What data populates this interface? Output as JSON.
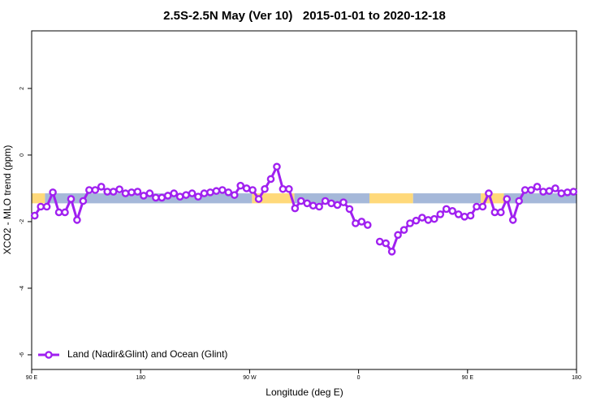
{
  "chart_data": {
    "type": "line",
    "title": "2.5S-2.5N May (Ver 10)   2015-01-01 to 2020-12-18",
    "x_label": "Longitude (deg E)",
    "y_label": "XCO2 - MLO trend (ppm)",
    "xlim": [
      90,
      540
    ],
    "ylim": [
      -6.44,
      3.73
    ],
    "xticks": [
      {
        "value": 90,
        "label": "90 E"
      },
      180,
      {
        "value": 270,
        "label": "90 W"
      },
      {
        "value": 360,
        "label": "0"
      },
      {
        "value": 450,
        "label": "90 E"
      },
      {
        "value": 540,
        "label": "180"
      }
    ],
    "yticks": [
      2,
      0,
      -2,
      -4,
      -6
    ],
    "legend_position": "lower left",
    "band": {
      "ylim": [
        -1.45,
        -1.15
      ],
      "segments": [
        {
          "x": [
            90,
            101
          ],
          "color": "#ffd97a"
        },
        {
          "x": [
            101,
            272
          ],
          "color": "#a5b8d9"
        },
        {
          "x": [
            272,
            307
          ],
          "color": "#ffd97a"
        },
        {
          "x": [
            307,
            369
          ],
          "color": "#a5b8d9"
        },
        {
          "x": [
            369,
            405
          ],
          "color": "#ffd97a"
        },
        {
          "x": [
            405,
            461
          ],
          "color": "#a5b8d9"
        },
        {
          "x": [
            461,
            480
          ],
          "color": "#ffd97a"
        },
        {
          "x": [
            480,
            540
          ],
          "color": "#a5b8d9"
        }
      ]
    },
    "x": [
      92.5,
      97.5,
      102.5,
      107.5,
      112.5,
      117.5,
      122.5,
      127.5,
      132.5,
      137.5,
      142.5,
      147.5,
      152.5,
      157.5,
      162.5,
      167.5,
      172.5,
      177.5,
      182.5,
      187.5,
      192.5,
      197.5,
      202.5,
      207.5,
      212.5,
      217.5,
      222.5,
      227.5,
      232.5,
      237.5,
      242.5,
      247.5,
      252.5,
      257.5,
      262.5,
      267.5,
      272.5,
      277.5,
      282.5,
      287.5,
      292.5,
      297.5,
      302.5,
      307.5,
      312.5,
      317.5,
      322.5,
      327.5,
      332.5,
      337.5,
      342.5,
      347.5,
      352.5,
      357.5,
      362.5,
      367.5,
      372.5,
      377.5,
      382.5,
      387.5,
      392.5,
      397.5,
      402.5,
      407.5,
      412.5,
      417.5,
      422.5,
      427.5,
      432.5,
      437.5,
      442.5,
      447.5,
      452.5,
      457.5,
      462.5,
      467.5,
      472.5,
      477.5,
      482.5,
      487.5,
      492.5,
      497.5,
      502.5,
      507.5,
      512.5,
      517.5,
      522.5,
      527.5,
      532.5,
      537.5
    ],
    "series": [
      {
        "name": "Land (Nadir&Glint) and Ocean (Glint)",
        "color": "#a020f0",
        "values": [
          -1.82,
          -1.55,
          -1.55,
          -1.12,
          -1.72,
          -1.72,
          -1.32,
          -1.95,
          -1.38,
          -1.05,
          -1.05,
          -0.95,
          -1.1,
          -1.1,
          -1.03,
          -1.15,
          -1.12,
          -1.1,
          -1.22,
          -1.15,
          -1.28,
          -1.28,
          -1.22,
          -1.15,
          -1.25,
          -1.2,
          -1.15,
          -1.25,
          -1.15,
          -1.12,
          -1.08,
          -1.05,
          -1.12,
          -1.2,
          -0.92,
          -1.0,
          -1.05,
          -1.32,
          -1.02,
          -0.72,
          -0.35,
          -1.02,
          -1.02,
          -1.6,
          -1.38,
          -1.45,
          -1.52,
          -1.55,
          -1.38,
          -1.45,
          -1.5,
          -1.42,
          -1.62,
          -2.05,
          -2.0,
          -2.1,
          null,
          -2.6,
          -2.65,
          -2.9,
          -2.4,
          -2.25,
          -2.05,
          -1.97,
          -1.88,
          -1.95,
          -1.92,
          -1.78,
          -1.62,
          -1.68,
          -1.78,
          -1.85,
          -1.82,
          -1.55,
          -1.55,
          -1.15,
          -1.72,
          -1.72,
          -1.32,
          -1.95,
          -1.38,
          -1.05,
          -1.05,
          -0.95,
          -1.1,
          -1.08,
          -1.0,
          -1.15,
          -1.12,
          -1.1
        ]
      }
    ]
  }
}
